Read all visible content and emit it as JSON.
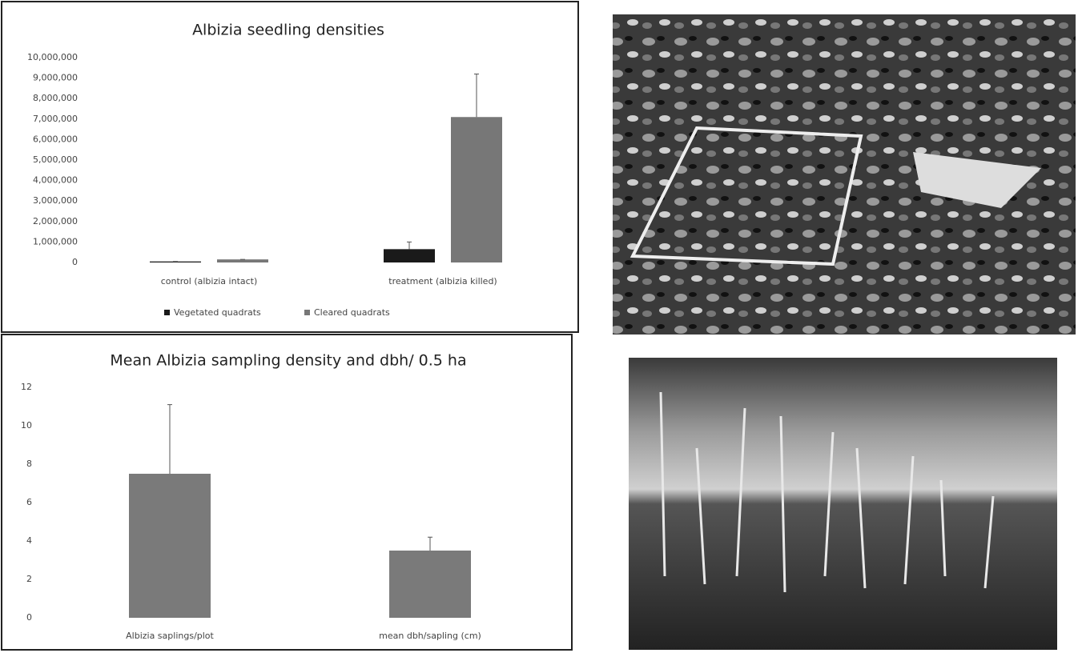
{
  "chart_data": [
    {
      "type": "bar",
      "title": "Albizia seedling densities",
      "categories": [
        "control (albizia intact)",
        "treatment (albizia killed)"
      ],
      "series": [
        {
          "name": "Vegetated quadrats",
          "color": "#1a1a1a",
          "values": [
            50000,
            650000
          ],
          "errors": [
            0,
            350000
          ]
        },
        {
          "name": "Cleared quadrats",
          "color": "#777777",
          "values": [
            150000,
            7100000
          ],
          "errors": [
            0,
            2100000
          ]
        }
      ],
      "ylim": [
        0,
        10000000
      ],
      "yticks": [
        0,
        {
          "value": 1000000,
          "label": "1,000,000"
        },
        {
          "value": 2000000,
          "label": "2,000,000"
        },
        {
          "value": 3000000,
          "label": "3,000,000"
        },
        {
          "value": 4000000,
          "label": "4,000,000"
        },
        {
          "value": 5000000,
          "label": "5,000,000"
        },
        {
          "value": 6000000,
          "label": "6,000,000"
        },
        {
          "value": 7000000,
          "label": "7,000,000"
        },
        {
          "value": 8000000,
          "label": "8,000,000"
        },
        {
          "value": 9000000,
          "label": "9,000,000"
        },
        {
          "value": 10000000,
          "label": "10,000,000"
        }
      ]
    },
    {
      "type": "bar",
      "title": "Mean Albizia sampling density and dbh/ 0.5 ha",
      "categories": [
        "Albizia saplings/plot",
        "mean dbh/sapling (cm)"
      ],
      "values": [
        7.5,
        3.5
      ],
      "errors": [
        3.6,
        0.7
      ],
      "color": "#7a7a7a",
      "ylim": [
        0,
        12
      ],
      "yticks": [
        0,
        2,
        4,
        6,
        8,
        10,
        12
      ]
    }
  ]
}
